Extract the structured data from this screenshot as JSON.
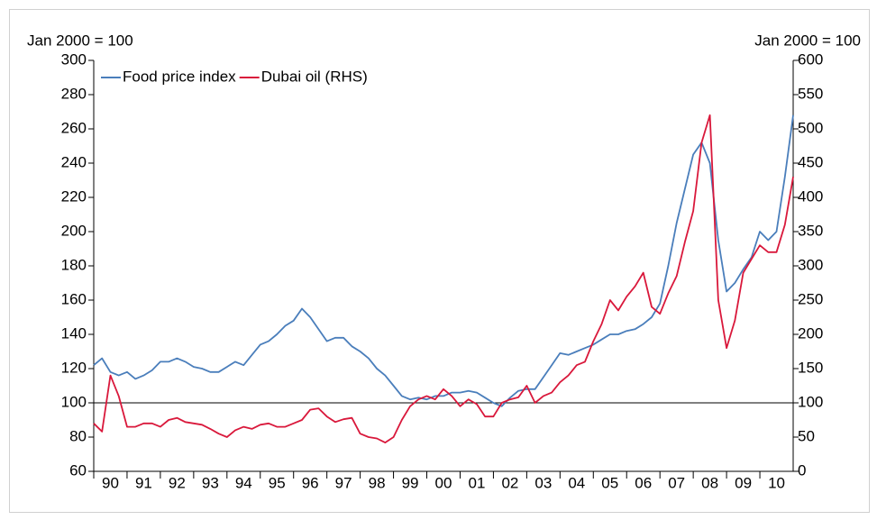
{
  "chart_data": {
    "type": "line",
    "y_label": "Jan 2000 = 100",
    "y2_label": "Jan 2000 = 100",
    "categories": [
      "90",
      null,
      null,
      null,
      "91",
      null,
      null,
      null,
      "92",
      null,
      null,
      null,
      "93",
      null,
      null,
      null,
      "94",
      null,
      null,
      null,
      "95",
      null,
      null,
      null,
      "96",
      null,
      null,
      null,
      "97",
      null,
      null,
      null,
      "98",
      null,
      null,
      null,
      "99",
      null,
      null,
      null,
      "00",
      null,
      null,
      null,
      "01",
      null,
      null,
      null,
      "02",
      null,
      null,
      null,
      "03",
      null,
      null,
      null,
      "04",
      null,
      null,
      null,
      "05",
      null,
      null,
      null,
      "06",
      null,
      null,
      null,
      "07",
      null,
      null,
      null,
      "08",
      null,
      null,
      null,
      "09",
      null,
      null,
      null,
      "10",
      null,
      null,
      null,
      null
    ],
    "series": [
      {
        "name": "Food price index",
        "color": "#4a7ebb",
        "values": [
          122,
          126,
          118,
          116,
          118,
          114,
          116,
          119,
          124,
          124,
          126,
          124,
          121,
          120,
          118,
          118,
          121,
          124,
          122,
          128,
          134,
          136,
          140,
          145,
          148,
          155,
          150,
          143,
          136,
          138,
          138,
          133,
          130,
          126,
          120,
          116,
          110,
          104,
          102,
          103,
          102,
          104,
          104,
          106,
          106,
          107,
          106,
          103,
          100,
          98,
          103,
          107,
          108,
          108,
          115,
          122,
          129,
          128,
          130,
          132,
          134,
          137,
          140,
          140,
          142,
          143,
          146,
          150,
          158,
          180,
          205,
          225,
          245,
          252,
          240,
          195,
          165,
          170,
          178,
          185,
          200,
          195,
          200,
          232,
          268
        ]
      },
      {
        "name": "Dubai oil (RHS)",
        "color": "#d9183b",
        "axis": "y2",
        "values": [
          70,
          58,
          140,
          110,
          65,
          65,
          70,
          70,
          65,
          75,
          78,
          72,
          70,
          68,
          62,
          55,
          50,
          60,
          65,
          62,
          68,
          70,
          65,
          65,
          70,
          75,
          90,
          92,
          80,
          72,
          76,
          78,
          55,
          50,
          48,
          42,
          50,
          75,
          95,
          105,
          110,
          105,
          120,
          110,
          95,
          105,
          98,
          80,
          80,
          100,
          105,
          108,
          125,
          100,
          110,
          115,
          130,
          140,
          155,
          160,
          190,
          215,
          250,
          235,
          255,
          270,
          290,
          240,
          230,
          260,
          285,
          335,
          380,
          480,
          520,
          250,
          180,
          220,
          290,
          310,
          330,
          320,
          320,
          360,
          430
        ]
      }
    ],
    "reference_line": 100,
    "ylim": [
      60,
      300
    ],
    "yticks": [
      60,
      80,
      100,
      120,
      140,
      160,
      180,
      200,
      220,
      240,
      260,
      280,
      300
    ],
    "y2lim": [
      0,
      600
    ],
    "y2ticks": [
      0,
      50,
      100,
      150,
      200,
      250,
      300,
      350,
      400,
      450,
      500,
      550,
      600
    ],
    "legend": "top-left"
  }
}
